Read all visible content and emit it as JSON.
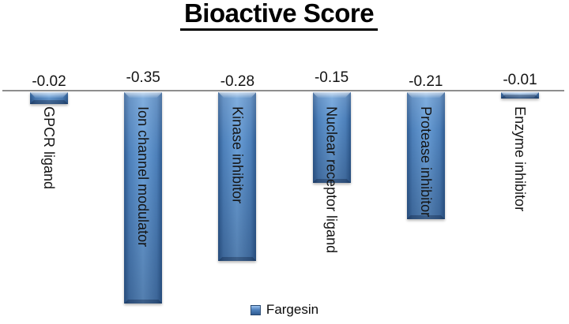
{
  "title": "Bioactive Score",
  "legend": {
    "series_label": "Fargesin"
  },
  "chart_data": {
    "type": "bar",
    "title": "Bioactive Score",
    "categories": [
      "GPCR ligand",
      "Ion channel modulator",
      "Kinase inhibitor",
      "Nuclear receptor ligand",
      "Protease inhibitor",
      "Enzyme inhibitor"
    ],
    "series": [
      {
        "name": "Fargesin",
        "values": [
          -0.02,
          -0.35,
          -0.28,
          -0.15,
          -0.21,
          -0.01
        ]
      }
    ],
    "data_labels": [
      "-0.02",
      "-0.35",
      "-0.28",
      "-0.15",
      "-0.21",
      "-0.01"
    ],
    "xlabel": "",
    "ylabel": "",
    "baseline": 0,
    "ylim": [
      -0.38,
      0
    ],
    "grid": false,
    "legend_position": "bottom",
    "category_label_rotation": "90deg-clockwise",
    "colors": {
      "bar_main": "#4f81bd",
      "bar_edge": "#2f5c92",
      "bar_mid": "#4d80ba",
      "bar_light": "#6ba0d8",
      "axis_line": "#8e8e8e",
      "text": "#141414"
    }
  }
}
